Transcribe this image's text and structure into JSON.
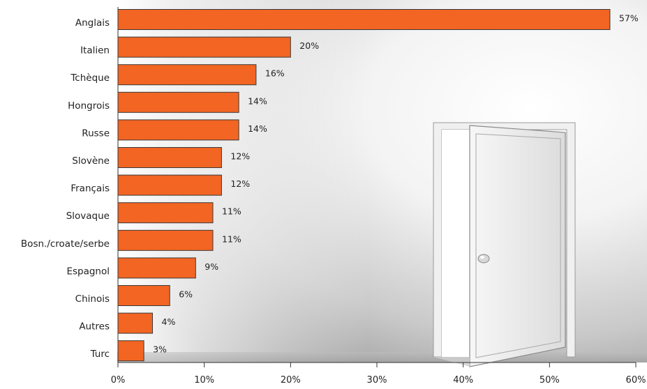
{
  "chart_data": {
    "type": "bar",
    "orientation": "horizontal",
    "categories": [
      "Anglais",
      "Italien",
      "Tchèque",
      "Hongrois",
      "Russe",
      "Slovène",
      "Français",
      "Slovaque",
      "Bosn./croate/serbe",
      "Espagnol",
      "Chinois",
      "Autres",
      "Turc"
    ],
    "values": [
      57,
      20,
      16,
      14,
      14,
      12,
      12,
      11,
      11,
      9,
      6,
      4,
      3
    ],
    "value_labels": [
      "57%",
      "20%",
      "16%",
      "14%",
      "14%",
      "12%",
      "12%",
      "11%",
      "11%",
      "9%",
      "6%",
      "4%",
      "3%"
    ],
    "xlim": [
      0,
      60
    ],
    "x_ticks": [
      "0%",
      "10%",
      "20%",
      "30%",
      "40%",
      "50%",
      "60%"
    ],
    "title": "",
    "xlabel": "",
    "ylabel": "",
    "grid": false,
    "bar_color": "#F26522",
    "bar_edge_color": "#3a3a3a",
    "background_illustration": "open-door-icon"
  }
}
